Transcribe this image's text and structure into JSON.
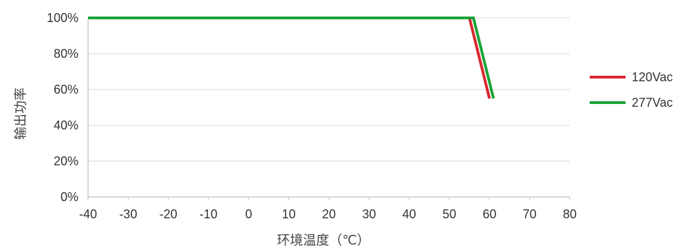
{
  "chart_data": {
    "type": "line",
    "xlabel": "环境温度（℃）",
    "ylabel": "输出功率",
    "xlim": [
      -40,
      80
    ],
    "ylim": [
      0,
      100
    ],
    "x_ticks": [
      -40,
      -30,
      -20,
      -10,
      0,
      10,
      20,
      30,
      40,
      50,
      60,
      70,
      80
    ],
    "y_ticks": [
      0,
      20,
      40,
      60,
      80,
      100
    ],
    "y_tick_labels": [
      "0%",
      "20%",
      "40%",
      "60%",
      "80%",
      "100%"
    ],
    "grid": "horizontal",
    "legend_position": "right",
    "series": [
      {
        "name": "120Vac",
        "color": "#d9262e",
        "points": [
          [
            -40,
            100
          ],
          [
            55,
            100
          ],
          [
            60,
            55
          ]
        ]
      },
      {
        "name": "277Vac",
        "color": "#1aa339",
        "points": [
          [
            -40,
            100
          ],
          [
            56,
            100
          ],
          [
            61,
            55
          ]
        ]
      }
    ]
  }
}
